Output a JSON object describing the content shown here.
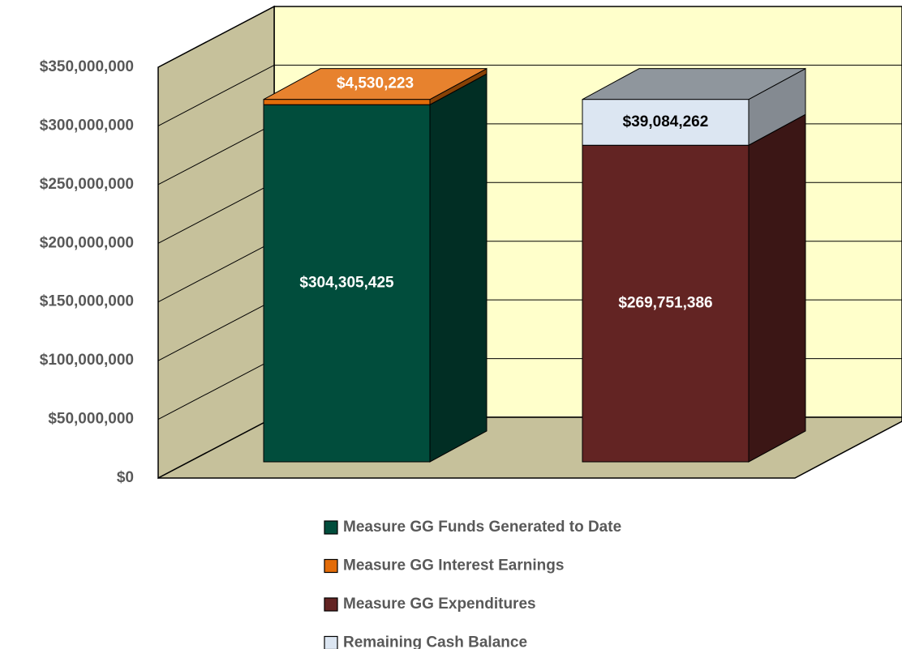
{
  "chart_data": {
    "type": "bar3d_stacked",
    "categories": [
      null,
      null
    ],
    "series": [
      {
        "name": "Measure GG Funds Generated to Date",
        "color": "#014d3c",
        "values": [
          304305425,
          null
        ],
        "value_labels": [
          "$304,305,425",
          null
        ]
      },
      {
        "name": "Measure GG Interest Earnings",
        "color": "#e36c09",
        "values": [
          4530223,
          null
        ],
        "value_labels": [
          "$4,530,223",
          null
        ]
      },
      {
        "name": "Measure GG Expenditures",
        "color": "#632423",
        "values": [
          null,
          269751386
        ],
        "value_labels": [
          null,
          "$269,751,386"
        ]
      },
      {
        "name": "Remaining Cash Balance",
        "color": "#dce6f2",
        "values": [
          null,
          39084262
        ],
        "value_labels": [
          null,
          "$39,084,262"
        ]
      }
    ],
    "ylim": [
      0,
      350000000
    ],
    "yticks": [
      {
        "value": 0,
        "label": "$0"
      },
      {
        "value": 50000000,
        "label": "$50,000,000"
      },
      {
        "value": 100000000,
        "label": "$100,000,000"
      },
      {
        "value": 150000000,
        "label": "$150,000,000"
      },
      {
        "value": 200000000,
        "label": "$200,000,000"
      },
      {
        "value": 250000000,
        "label": "$250,000,000"
      },
      {
        "value": 300000000,
        "label": "$300,000,000"
      },
      {
        "value": 350000000,
        "label": "$350,000,000"
      }
    ],
    "grid": true
  }
}
